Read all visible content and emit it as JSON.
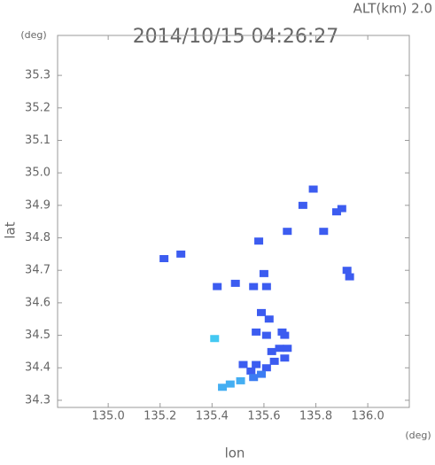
{
  "chart_data": {
    "type": "scatter",
    "header": "ALT(km) 2.0",
    "title": "2014/10/15 04:26:27",
    "y_unit": "(deg)",
    "x_unit": "(deg)",
    "xlabel": "lon",
    "ylabel": "lat",
    "xlim": [
      134.805,
      136.16
    ],
    "ylim": [
      34.278,
      35.423
    ],
    "xticks": [
      {
        "value": 135,
        "label": "135.0"
      },
      135.2,
      135.4,
      135.6,
      135.8,
      {
        "value": 136,
        "label": "136.0"
      }
    ],
    "yticks": [
      34.3,
      34.4,
      34.5,
      34.6,
      34.7,
      34.8,
      34.9,
      {
        "value": 35,
        "label": "35.0"
      },
      35.1,
      35.2,
      35.3
    ],
    "x": [
      135.215,
      135.28,
      135.79,
      135.75,
      135.88,
      135.9,
      135.69,
      135.83,
      135.58,
      135.92,
      135.93,
      135.6,
      135.42,
      135.49,
      135.56,
      135.61,
      135.59,
      135.62,
      135.57,
      135.61,
      135.68,
      135.66,
      135.63,
      135.69,
      135.67,
      135.57,
      135.61,
      135.64,
      135.68,
      135.52,
      135.55,
      135.44,
      135.47,
      135.51,
      135.56,
      135.59,
      135.41
    ],
    "values": [
      34.736,
      34.75,
      34.95,
      34.9,
      34.88,
      34.89,
      34.82,
      34.82,
      34.79,
      34.7,
      34.68,
      34.69,
      34.65,
      34.66,
      34.65,
      34.65,
      34.57,
      34.55,
      34.51,
      34.5,
      34.5,
      34.46,
      34.45,
      34.46,
      34.51,
      34.41,
      34.4,
      34.42,
      34.43,
      34.41,
      34.39,
      34.34,
      34.35,
      34.36,
      34.37,
      34.38,
      34.49
    ],
    "colors": [
      "#3c5cf0",
      "#3c5cf0",
      "#3c5cf0",
      "#3c5cf0",
      "#3c5cf0",
      "#3c5cf0",
      "#3c5cf0",
      "#3c5cf0",
      "#3c5cf0",
      "#3c5cf0",
      "#3c5cf0",
      "#3c5cf0",
      "#3c5cf0",
      "#3c5cf0",
      "#3c5cf0",
      "#3c5cf0",
      "#3c5cf0",
      "#3c5cf0",
      "#3c5cf0",
      "#3c5cf0",
      "#3c5cf0",
      "#3c5cf0",
      "#3c5cf0",
      "#3c5cf0",
      "#3c5cf0",
      "#3c5cf0",
      "#3c5cf0",
      "#3c5cf0",
      "#3c5cf0",
      "#3c5cf0",
      "#3c5cf0",
      "#44aef2",
      "#44aef2",
      "#44aef2",
      "#3c7cf2",
      "#3c7cf2",
      "#44c8f2"
    ]
  }
}
